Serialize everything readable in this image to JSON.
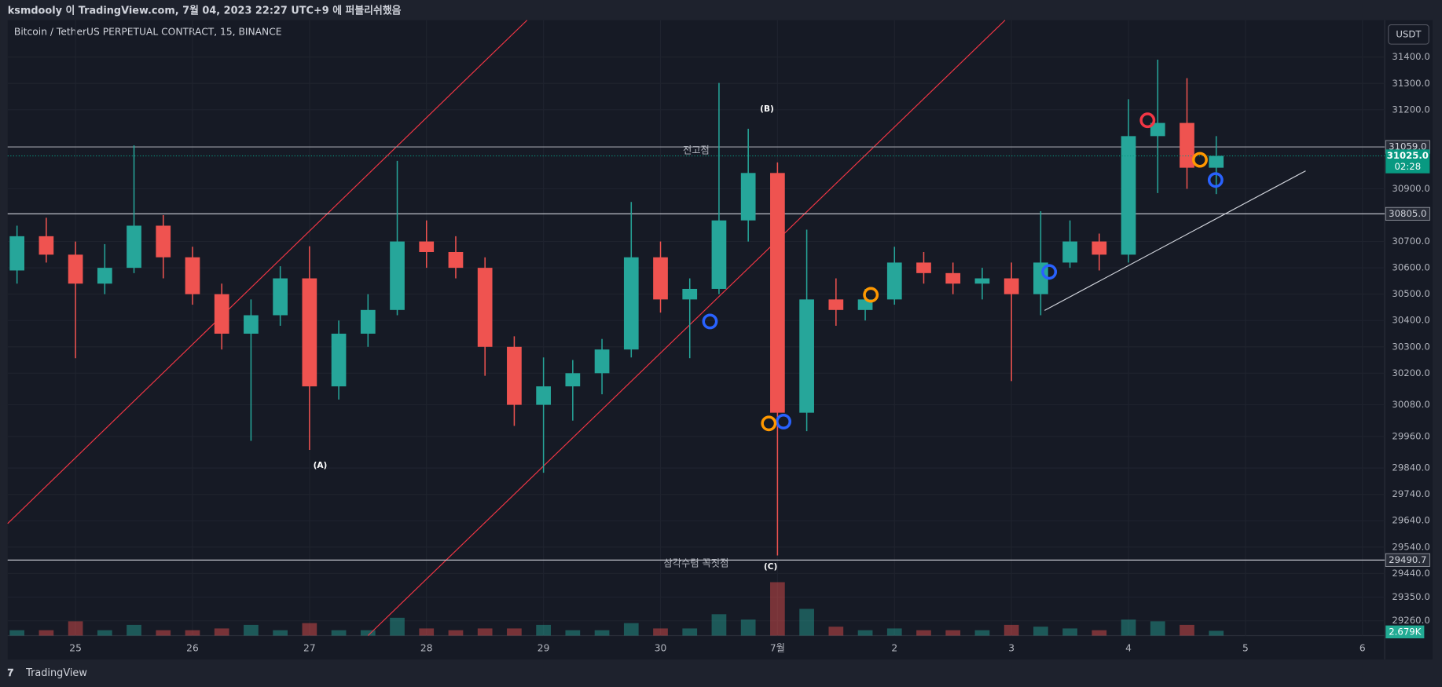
{
  "header": "ksmdooly 이 TradingView.com, 7월 04, 2023 22:27 UTC+9 에 퍼블리쉬했음",
  "footer": "TradingView",
  "chart_data": {
    "type": "candlestick",
    "title": "Bitcoin / TetherUS PERPETUAL CONTRACT, 15, BINANCE",
    "currency": "USDT",
    "x": [
      -0.5,
      -0.25,
      0,
      0.25,
      0.5,
      0.75,
      1,
      1.25,
      1.5,
      1.75,
      2,
      2.25,
      2.5,
      2.75,
      3,
      3.25,
      3.5,
      3.75,
      4,
      4.25,
      4.5,
      4.75,
      5,
      5.25,
      5.5,
      5.75,
      6,
      6.25,
      6.5,
      6.75,
      7,
      7.25,
      7.5,
      7.75,
      8,
      8.25,
      8.5,
      8.75,
      9,
      9.25,
      9.5,
      9.75
    ],
    "open": [
      30590,
      30720,
      30650,
      30540,
      30600,
      30760,
      30640,
      30500,
      30350,
      30420,
      30560,
      30150,
      30350,
      30440,
      30700,
      30660,
      30600,
      30300,
      30080,
      30150,
      30200,
      30290,
      30640,
      30480,
      30520,
      30780,
      30960,
      30050,
      30480,
      30440,
      30480,
      30620,
      30580,
      30540,
      30560,
      30500,
      30620,
      30700,
      30650,
      31100,
      31150,
      30980
    ],
    "high": [
      30760,
      30790,
      30700,
      30690,
      31065,
      30800,
      30680,
      30540,
      30480,
      30606,
      30682,
      30400,
      30500,
      31006,
      30780,
      30720,
      30640,
      30340,
      30260,
      30250,
      30330,
      30850,
      30700,
      30560,
      31302,
      31128,
      31000,
      30745,
      30560,
      30520,
      30680,
      30660,
      30620,
      30600,
      30620,
      30815,
      30780,
      30730,
      31240,
      31390,
      31320,
      31100
    ],
    "low": [
      30540,
      30620,
      30257,
      30500,
      30580,
      30560,
      30460,
      30290,
      29943,
      30380,
      29909,
      30100,
      30300,
      30420,
      30600,
      30560,
      30190,
      30000,
      29822,
      30020,
      30120,
      30260,
      30430,
      30257,
      30500,
      30700,
      29508,
      29980,
      30380,
      30400,
      30460,
      30540,
      30500,
      30480,
      30170,
      30420,
      30600,
      30590,
      30620,
      30884,
      30900,
      30880
    ],
    "close": [
      30720,
      30650,
      30540,
      30600,
      30760,
      30640,
      30500,
      30350,
      30420,
      30560,
      30150,
      30350,
      30440,
      30700,
      30660,
      30600,
      30300,
      30080,
      30150,
      30200,
      30290,
      30640,
      30480,
      30520,
      30780,
      30960,
      30050,
      30480,
      30440,
      30480,
      30620,
      30580,
      30540,
      30560,
      30500,
      30620,
      30700,
      30650,
      31100,
      31150,
      30980,
      31025
    ],
    "up_color": "#26a69a",
    "down_color": "#ef5350",
    "volume": [
      3,
      3,
      8,
      3,
      6,
      3,
      3,
      4,
      6,
      3,
      7,
      3,
      3,
      10,
      4,
      3,
      4,
      4,
      6,
      3,
      3,
      7,
      4,
      4,
      12,
      9,
      30,
      15,
      5,
      3,
      4,
      3,
      3,
      3,
      6,
      5,
      4,
      3,
      9,
      8,
      6,
      2.679
    ],
    "volume_lim": [
      0,
      32
    ],
    "volume_label": "2.679K",
    "xlim": [
      -0.58,
      11.19
    ],
    "xticks": [
      {
        "value": 0,
        "label": "25"
      },
      {
        "value": 1,
        "label": "26"
      },
      {
        "value": 2,
        "label": "27"
      },
      {
        "value": 3,
        "label": "28"
      },
      {
        "value": 4,
        "label": "29"
      },
      {
        "value": 5,
        "label": "30"
      },
      {
        "value": 6,
        "label": "7월"
      },
      {
        "value": 7,
        "label": "2"
      },
      {
        "value": 8,
        "label": "3"
      },
      {
        "value": 9,
        "label": "4"
      },
      {
        "value": 10,
        "label": "5"
      },
      {
        "value": 11,
        "label": "6"
      }
    ],
    "ylim": [
      29204,
      31540
    ],
    "yticks": [
      {
        "value": 31400,
        "label": "31400.0"
      },
      {
        "value": 31300,
        "label": "31300.0"
      },
      {
        "value": 31200,
        "label": "31200.0"
      },
      {
        "value": 30900,
        "label": "30900.0"
      },
      {
        "value": 30700,
        "label": "30700.0"
      },
      {
        "value": 30600,
        "label": "30600.0"
      },
      {
        "value": 30500,
        "label": "30500.0"
      },
      {
        "value": 30400,
        "label": "30400.0"
      },
      {
        "value": 30300,
        "label": "30300.0"
      },
      {
        "value": 30200,
        "label": "30200.0"
      },
      {
        "value": 30080,
        "label": "30080.0"
      },
      {
        "value": 29960,
        "label": "29960.0"
      },
      {
        "value": 29840,
        "label": "29840.0"
      },
      {
        "value": 29740,
        "label": "29740.0"
      },
      {
        "value": 29640,
        "label": "29640.0"
      },
      {
        "value": 29540,
        "label": "29540.0"
      },
      {
        "value": 29440,
        "label": "29440.0"
      },
      {
        "value": 29350,
        "label": "29350.0"
      },
      {
        "value": 29260,
        "label": "29260.0"
      }
    ],
    "levels": [
      {
        "value": 31059,
        "label": "31059.0"
      },
      {
        "value": 30805,
        "label": "30805.0"
      },
      {
        "value": 29490.7,
        "label": "29490.7"
      }
    ],
    "last_price": {
      "value": 31025,
      "label": "31025.0",
      "countdown": "02:28"
    },
    "annotations": [
      "전고점",
      "삼각수렴 꼭짓점",
      "(A)",
      "(B)",
      "(C)"
    ]
  }
}
